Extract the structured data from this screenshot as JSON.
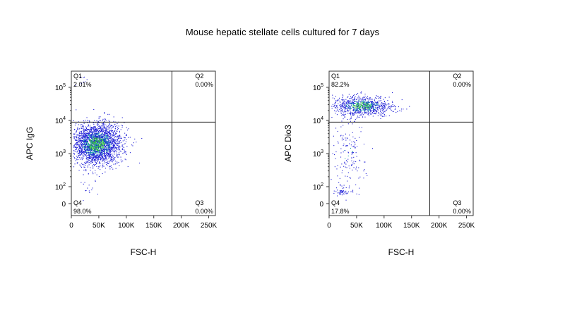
{
  "title": "Mouse hepatic stellate cells cultured for 7 days",
  "colors": {
    "low_density": "#1f1fd6",
    "high_density": "#2fbf3a",
    "mid_density": "#17a8a8",
    "gates": "#222222"
  },
  "chart_data": [
    {
      "type": "scatter",
      "name": "panel-igg",
      "xlabel": "FSC-H",
      "ylabel": "APC IgG",
      "x_ticks": [
        "0",
        "50K",
        "100K",
        "150K",
        "200K",
        "250K"
      ],
      "x_tick_values": [
        0,
        50000,
        100000,
        150000,
        200000,
        250000
      ],
      "xlim": [
        0,
        262144
      ],
      "y_scale": "biexponential",
      "y_ticks": [
        {
          "base": "0",
          "exp": "",
          "value": 0
        },
        {
          "base": "10",
          "exp": "2",
          "value": 100
        },
        {
          "base": "10",
          "exp": "3",
          "value": 1000
        },
        {
          "base": "10",
          "exp": "4",
          "value": 10000
        },
        {
          "base": "10",
          "exp": "5",
          "value": 100000
        }
      ],
      "gate": {
        "x": 183000,
        "y": 8900
      },
      "quadrants": [
        {
          "name": "Q1",
          "value": "2.01%",
          "position": "top-left"
        },
        {
          "name": "Q2",
          "value": "0.00%",
          "position": "top-right"
        },
        {
          "name": "Q3",
          "value": "0.00%",
          "position": "bottom-right"
        },
        {
          "name": "Q4",
          "value": "98.0%",
          "position": "bottom-left"
        }
      ],
      "populations": [
        {
          "x_center": 45000,
          "x_sd": 22000,
          "y_log_center": 3.3,
          "y_log_sd": 0.3,
          "count": 2600
        },
        {
          "x_center": 30000,
          "x_sd": 12000,
          "y_log_center": 2.05,
          "y_log_sd": 0.25,
          "count": 20
        },
        {
          "x_center": 20000,
          "x_sd": 8000,
          "y_log_center": 5.2,
          "y_log_sd": 0.1,
          "count": 10
        }
      ]
    },
    {
      "type": "scatter",
      "name": "panel-dio3",
      "xlabel": "FSC-H",
      "ylabel": "APC Dio3",
      "x_ticks": [
        "0",
        "50K",
        "100K",
        "150K",
        "200K",
        "250K"
      ],
      "x_tick_values": [
        0,
        50000,
        100000,
        150000,
        200000,
        250000
      ],
      "xlim": [
        0,
        262144
      ],
      "y_scale": "biexponential",
      "y_ticks": [
        {
          "base": "0",
          "exp": "",
          "value": 0
        },
        {
          "base": "10",
          "exp": "2",
          "value": 100
        },
        {
          "base": "10",
          "exp": "3",
          "value": 1000
        },
        {
          "base": "10",
          "exp": "4",
          "value": 10000
        },
        {
          "base": "10",
          "exp": "5",
          "value": 100000
        }
      ],
      "gate": {
        "x": 183000,
        "y": 8900
      },
      "quadrants": [
        {
          "name": "Q1",
          "value": "82.2%",
          "position": "top-left"
        },
        {
          "name": "Q2",
          "value": "0.00%",
          "position": "top-right"
        },
        {
          "name": "Q3",
          "value": "0.00%",
          "position": "bottom-right"
        },
        {
          "name": "Q4",
          "value": "17.8%",
          "position": "bottom-left"
        }
      ],
      "populations": [
        {
          "x_center": 60000,
          "x_sd": 25000,
          "y_log_center": 4.45,
          "y_log_sd": 0.15,
          "count": 900
        },
        {
          "x_center": 35000,
          "x_sd": 15000,
          "y_log_center": 3.0,
          "y_log_sd": 0.6,
          "count": 160
        },
        {
          "x_center": 25000,
          "x_sd": 9000,
          "y_log_center": 1.85,
          "y_log_sd": 0.08,
          "count": 50
        }
      ]
    }
  ]
}
